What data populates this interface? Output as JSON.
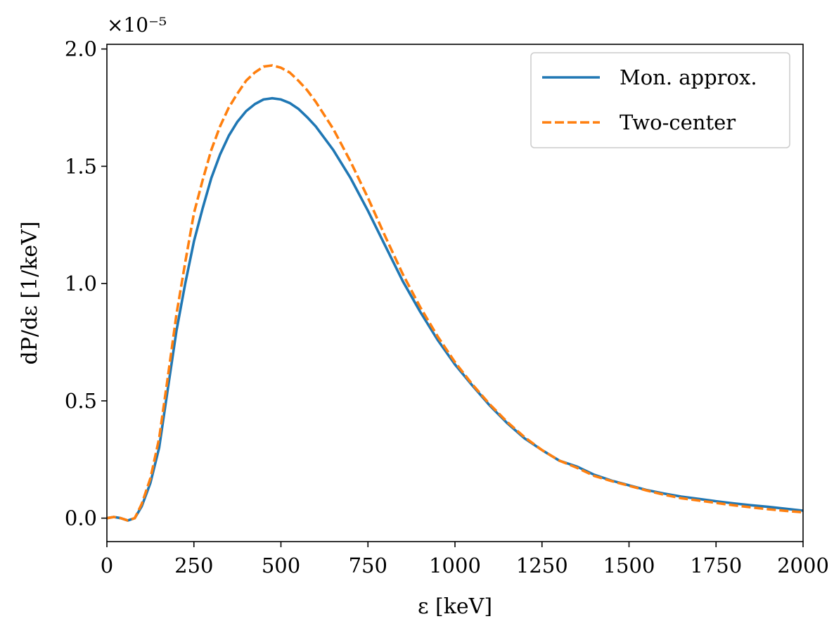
{
  "chart_data": {
    "type": "line",
    "title": "",
    "xlabel": "ε [keV]",
    "ylabel": "dP/dε  [1/keV]",
    "y_scale_label": "×10⁻⁵",
    "xlim": [
      0,
      2000
    ],
    "ylim": [
      -0.1,
      2.02
    ],
    "x_ticks": [
      0,
      250,
      500,
      750,
      1000,
      1250,
      1500,
      1750,
      2000
    ],
    "x_tick_labels": [
      "0",
      "250",
      "500",
      "750",
      "1000",
      "1250",
      "1500",
      "1750",
      "2000"
    ],
    "y_ticks": [
      0.0,
      0.5,
      1.0,
      1.5,
      2.0
    ],
    "y_tick_labels": [
      "0.0",
      "0.5",
      "1.0",
      "1.5",
      "2.0"
    ],
    "grid": false,
    "legend_position": "top-right",
    "series": [
      {
        "name": "Mon. approx.",
        "color": "#1f77b4",
        "style": "solid",
        "x": [
          0,
          20,
          40,
          60,
          80,
          100,
          125,
          150,
          175,
          200,
          225,
          250,
          275,
          300,
          325,
          350,
          375,
          400,
          425,
          450,
          475,
          500,
          525,
          550,
          575,
          600,
          650,
          700,
          750,
          800,
          850,
          900,
          950,
          1000,
          1050,
          1100,
          1150,
          1200,
          1250,
          1300,
          1350,
          1400,
          1450,
          1500,
          1550,
          1600,
          1650,
          1700,
          1750,
          1800,
          1850,
          1900,
          1950,
          2000
        ],
        "y": [
          0.0,
          0.005,
          0.0,
          -0.01,
          0.0,
          0.05,
          0.15,
          0.3,
          0.55,
          0.8,
          1.0,
          1.18,
          1.32,
          1.45,
          1.55,
          1.63,
          1.69,
          1.735,
          1.765,
          1.785,
          1.79,
          1.785,
          1.77,
          1.745,
          1.71,
          1.67,
          1.57,
          1.45,
          1.31,
          1.16,
          1.01,
          0.88,
          0.76,
          0.655,
          0.565,
          0.48,
          0.405,
          0.34,
          0.29,
          0.245,
          0.22,
          0.185,
          0.16,
          0.14,
          0.12,
          0.105,
          0.092,
          0.082,
          0.072,
          0.063,
          0.055,
          0.048,
          0.04,
          0.032
        ]
      },
      {
        "name": "Two-center",
        "color": "#ff7f0e",
        "style": "dashed",
        "x": [
          0,
          20,
          40,
          60,
          80,
          100,
          125,
          150,
          175,
          200,
          225,
          250,
          275,
          300,
          325,
          350,
          375,
          400,
          425,
          450,
          475,
          500,
          525,
          550,
          575,
          600,
          650,
          700,
          750,
          800,
          850,
          900,
          950,
          1000,
          1050,
          1100,
          1150,
          1200,
          1250,
          1300,
          1350,
          1400,
          1450,
          1500,
          1550,
          1600,
          1650,
          1700,
          1750,
          1800,
          1850,
          1900,
          1950,
          2000
        ],
        "y": [
          0.0,
          0.005,
          0.0,
          -0.01,
          0.0,
          0.06,
          0.17,
          0.34,
          0.6,
          0.87,
          1.09,
          1.3,
          1.44,
          1.57,
          1.67,
          1.75,
          1.81,
          1.865,
          1.9,
          1.925,
          1.93,
          1.92,
          1.9,
          1.865,
          1.825,
          1.775,
          1.66,
          1.52,
          1.365,
          1.2,
          1.04,
          0.9,
          0.775,
          0.665,
          0.57,
          0.485,
          0.41,
          0.345,
          0.29,
          0.245,
          0.215,
          0.18,
          0.158,
          0.138,
          0.118,
          0.1,
          0.085,
          0.075,
          0.065,
          0.055,
          0.046,
          0.038,
          0.031,
          0.025
        ]
      }
    ]
  }
}
